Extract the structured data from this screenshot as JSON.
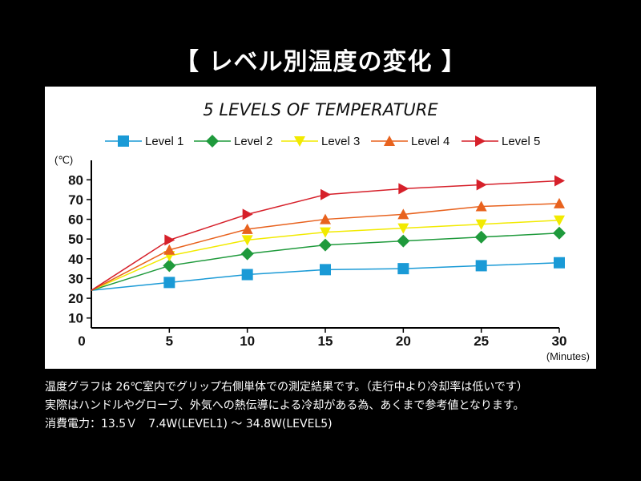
{
  "heading": "【 レベル別温度の変化 】",
  "notes": [
    "温度グラフは 26℃室内でグリップ右側単体での測定結果です。（走行中より冷却率は低いです）",
    "実際はハンドルやグローブ、外気への熱伝導による冷却がある為、あくまで参考値となります。",
    "消費電力：13.5Ｖ　7.4W(LEVEL1) ～ 34.8W(LEVEL5)"
  ],
  "chart_data": {
    "type": "line",
    "title": "5 LEVELS OF TEMPERATURE",
    "y_unit_label": "(℃)",
    "x_unit_label": "(Minutes)",
    "x": [
      0,
      5,
      10,
      15,
      20,
      25,
      30
    ],
    "x_ticks": [
      "0",
      "5",
      "10",
      "15",
      "20",
      "25",
      "30"
    ],
    "y_ticks": [
      "10",
      "20",
      "30",
      "40",
      "50",
      "60",
      "70",
      "80"
    ],
    "xlim": [
      0,
      30
    ],
    "ylim": [
      5,
      85
    ],
    "grid": false,
    "legend_position": "top",
    "series": [
      {
        "name": "Level 1",
        "color": "#1a9ad6",
        "marker": "square",
        "values": [
          24,
          28,
          32,
          34.5,
          35,
          36.5,
          38
        ]
      },
      {
        "name": "Level 2",
        "color": "#1f9a3c",
        "marker": "diamond",
        "values": [
          24,
          36.5,
          42.5,
          47,
          49,
          51,
          53
        ]
      },
      {
        "name": "Level 3",
        "color": "#f2ea00",
        "marker": "triangle-down",
        "values": [
          24,
          41.5,
          49.5,
          53.5,
          55.5,
          57.5,
          59.5
        ]
      },
      {
        "name": "Level 4",
        "color": "#e8621e",
        "marker": "triangle-up",
        "values": [
          24,
          44.5,
          55,
          60,
          62.5,
          66.5,
          68
        ]
      },
      {
        "name": "Level 5",
        "color": "#d6202a",
        "marker": "triangle-right",
        "values": [
          24,
          49.5,
          62.5,
          72.5,
          75.5,
          77.5,
          79.5
        ]
      }
    ]
  }
}
